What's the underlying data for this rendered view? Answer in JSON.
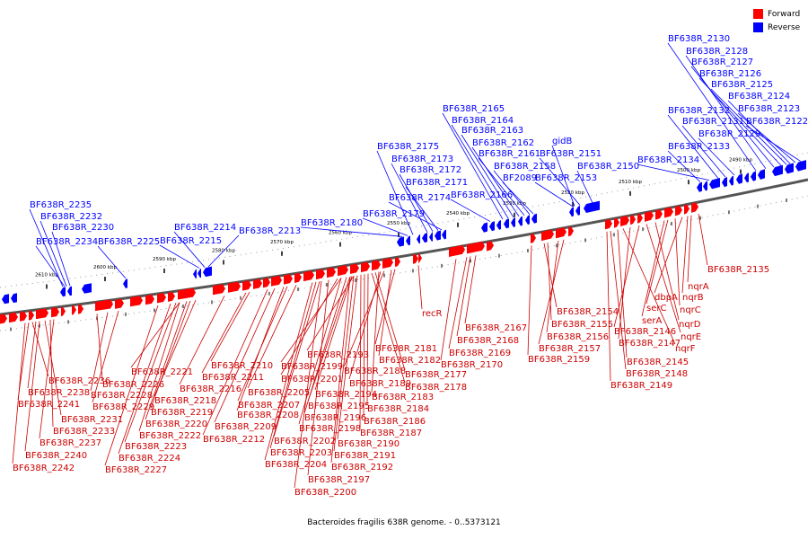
{
  "legend": {
    "forward_label": "Forward",
    "reverse_label": "Reverse",
    "forward_color": "#ff0000",
    "reverse_color": "#0000ff"
  },
  "caption": "Bacteroides fragilis 638R genome. - 0..5373121",
  "ruler_ticks": [
    "2490 kbp",
    "2500 kbp",
    "2510 kbp",
    "2520 kbp",
    "2530 kbp",
    "2540 kbp",
    "2550 kbp",
    "2560 kbp",
    "2570 kbp",
    "2580 kbp",
    "2590 kbp",
    "2600 kbp",
    "2610 kbp"
  ],
  "reverse_labels": [
    "BF638R_2130",
    "BF638R_2128",
    "BF638R_2127",
    "BF638R_2126",
    "BF638R_2125",
    "BF638R_2124",
    "BF638R_2132",
    "BF638R_2123",
    "BF638R_2131",
    "BF638R_2122",
    "BF638R_2129",
    "BF638R_2133",
    "BF638R_2134",
    "BF638R_2165",
    "BF638R_2164",
    "BF638R_2163",
    "BF638R_2162",
    "gidB",
    "BF638R_2175",
    "BF638R_2161",
    "BF638R_2151",
    "BF638R_2173",
    "BF638R_2158",
    "BF638R_2150",
    "BF638R_2172",
    "BF2089",
    "BF638R_2153",
    "BF638R_2171",
    "BF638R_2166",
    "BF638R_2174",
    "BF638R_2179",
    "BF638R_2235",
    "BF638R_2232",
    "BF638R_2180",
    "BF638R_2230",
    "BF638R_2214",
    "BF638R_2213",
    "BF638R_2234",
    "BF638R_2225",
    "BF638R_2215"
  ],
  "forward_labels": [
    "BF638R_2135",
    "nqrA",
    "nqrB",
    "dbpA",
    "nqrC",
    "serC",
    "serA",
    "nqrD",
    "BF638R_2154",
    "nqrE",
    "BF638R_2146",
    "BF638R_2155",
    "BF638R_2156",
    "recR",
    "BF638R_2147",
    "nqrF",
    "BF638R_2167",
    "BF638R_2157",
    "BF638R_2181",
    "BF638R_2168",
    "BF638R_2159",
    "BF638R_2145",
    "BF638R_2193",
    "BF638R_2182",
    "BF638R_2169",
    "BF638R_2210",
    "BF638R_2199",
    "BF638R_2188",
    "BF638R_2170",
    "BF638R_2148",
    "BF638R_2236",
    "BF638R_2221",
    "BF638R_2211",
    "BF638R_2201",
    "BF638R_2177",
    "BF638R_2189",
    "BF638R_2226",
    "BF638R_2149",
    "BF638R_2216",
    "BF638R_2238",
    "BF638R_2178",
    "BF638R_2205",
    "BF638R_2194",
    "BF638R_2183",
    "BF638R_2228",
    "BF638R_2218",
    "BF638R_2207",
    "BF638R_2195",
    "BF638R_2241",
    "BF638R_2229",
    "BF638R_2184",
    "BF638R_2219",
    "BF638R_2208",
    "BF638R_2196",
    "BF638R_2231",
    "BF638R_2186",
    "BF638R_2220",
    "BF638R_2209",
    "BF638R_2198",
    "BF638R_2233",
    "BF638R_2187",
    "BF638R_2222",
    "BF638R_2212",
    "BF638R_2237",
    "BF638R_2190",
    "BF638R_2202",
    "BF638R_2223",
    "BF638R_2203",
    "BF638R_2240",
    "BF638R_2191",
    "BF638R_2224",
    "BF638R_2204",
    "BF638R_2242",
    "BF638R_2192",
    "BF638R_2227",
    "BF638R_2197",
    "BF638R_2200"
  ]
}
